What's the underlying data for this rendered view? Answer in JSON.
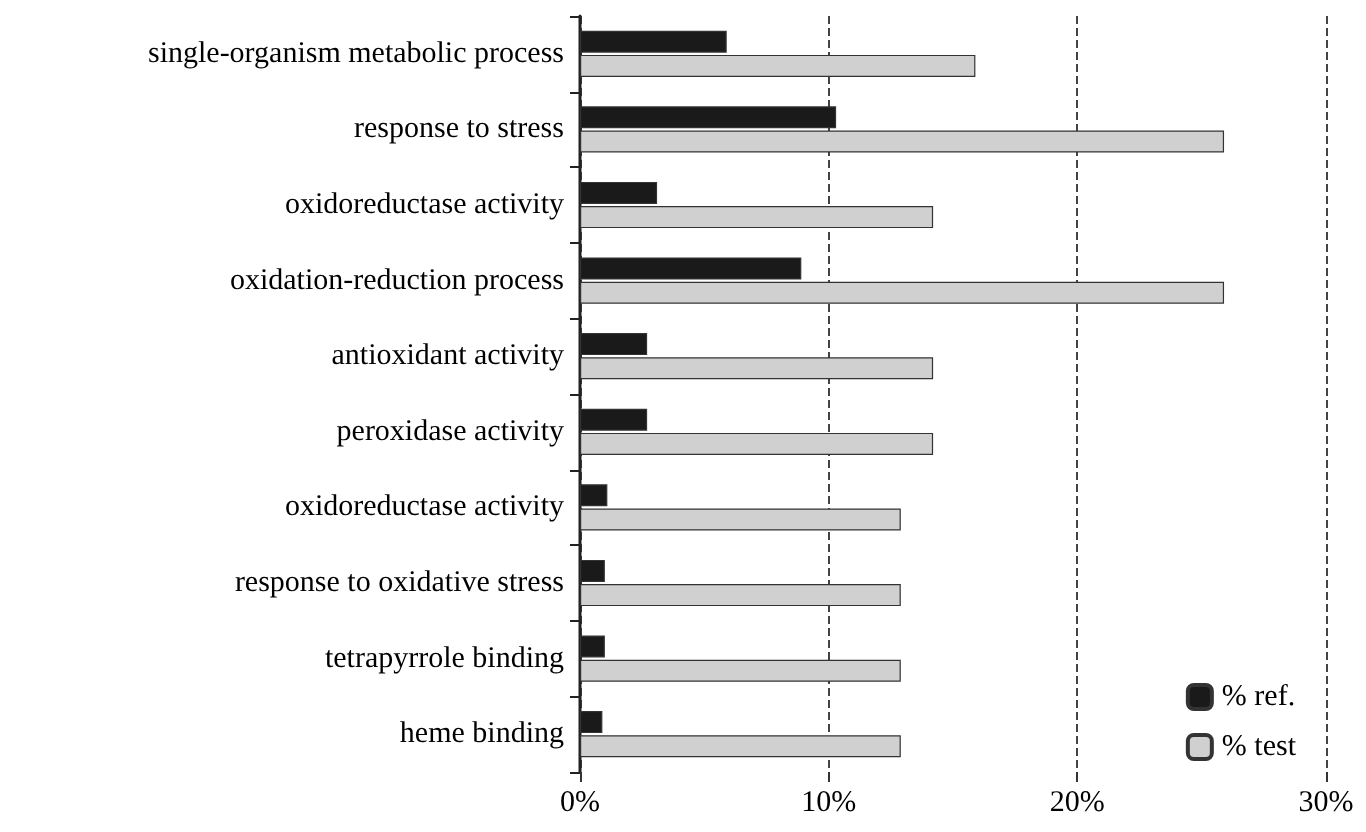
{
  "chart_data": {
    "type": "bar",
    "orientation": "horizontal",
    "categories": [
      "single-organism metabolic process",
      "response to stress",
      "oxidoreductase activity",
      "oxidation-reduction process",
      "antioxidant activity",
      "peroxidase activity",
      "oxidoreductase activity",
      "response to oxidative stress",
      "tetrapyrrole binding",
      "heme binding"
    ],
    "series": [
      {
        "name": "% ref.",
        "color": "#1a1a1a",
        "values": [
          5.9,
          10.3,
          3.1,
          8.9,
          2.7,
          2.7,
          1.1,
          1.0,
          1.0,
          0.9
        ]
      },
      {
        "name": "% test",
        "color": "#d0d0d0",
        "values": [
          15.9,
          25.9,
          14.2,
          25.9,
          14.2,
          14.2,
          12.9,
          12.9,
          12.9,
          12.9
        ]
      }
    ],
    "xlim": [
      0,
      30
    ],
    "xticks": [
      {
        "value": 0,
        "label": "0%"
      },
      {
        "value": 10,
        "label": "10%"
      },
      {
        "value": 20,
        "label": "20%"
      },
      {
        "value": 30,
        "label": "30%"
      }
    ],
    "grid": "x",
    "line_style": "dashed",
    "legend": "bottom right"
  }
}
